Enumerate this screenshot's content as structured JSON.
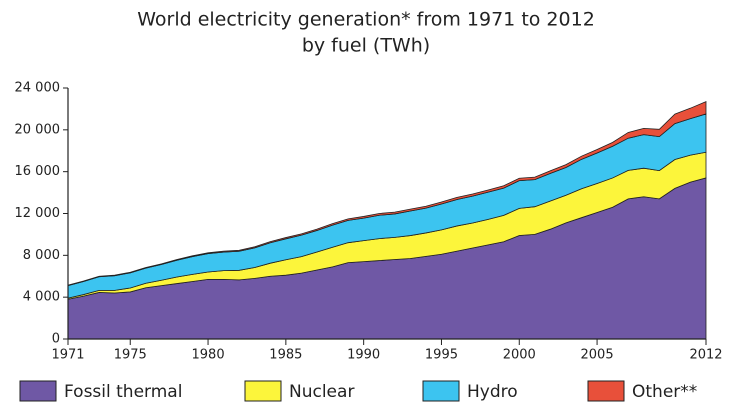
{
  "chart_data": {
    "type": "stacked-area",
    "title": [
      "World electricity generation* from 1971 to 2012",
      "by fuel (TWh)"
    ],
    "x": [
      1971,
      1972,
      1973,
      1974,
      1975,
      1976,
      1977,
      1978,
      1979,
      1980,
      1981,
      1982,
      1983,
      1984,
      1985,
      1986,
      1987,
      1988,
      1989,
      1990,
      1991,
      1992,
      1993,
      1994,
      1995,
      1996,
      1997,
      1998,
      1999,
      2000,
      2001,
      2002,
      2003,
      2004,
      2005,
      2006,
      2007,
      2008,
      2009,
      2010,
      2011,
      2012
    ],
    "series": [
      {
        "name": "Fossil thermal",
        "color": "#6f58a5",
        "values": [
          3800,
          4100,
          4450,
          4400,
          4500,
          4900,
          5100,
          5300,
          5500,
          5700,
          5700,
          5650,
          5800,
          6000,
          6100,
          6300,
          6600,
          6900,
          7300,
          7400,
          7500,
          7600,
          7700,
          7900,
          8100,
          8400,
          8700,
          9000,
          9300,
          9900,
          10000,
          10500,
          11100,
          11600,
          12100,
          12600,
          13400,
          13600,
          13400,
          14400,
          15000,
          15400
        ]
      },
      {
        "name": "Nuclear",
        "color": "#fcf53b",
        "values": [
          110,
          150,
          200,
          250,
          380,
          430,
          520,
          630,
          680,
          710,
          840,
          920,
          1040,
          1250,
          1480,
          1580,
          1720,
          1870,
          1910,
          2010,
          2100,
          2120,
          2190,
          2240,
          2330,
          2410,
          2390,
          2440,
          2520,
          2590,
          2650,
          2700,
          2640,
          2770,
          2770,
          2800,
          2720,
          2730,
          2700,
          2760,
          2580,
          2460
        ]
      },
      {
        "name": "Hydro",
        "color": "#3cc4f0",
        "values": [
          1200,
          1250,
          1300,
          1400,
          1450,
          1450,
          1500,
          1600,
          1700,
          1750,
          1770,
          1820,
          1880,
          1950,
          2000,
          2050,
          2060,
          2120,
          2130,
          2150,
          2230,
          2240,
          2350,
          2370,
          2480,
          2530,
          2570,
          2600,
          2610,
          2650,
          2590,
          2640,
          2660,
          2810,
          2920,
          3030,
          3080,
          3210,
          3250,
          3440,
          3490,
          3660
        ]
      },
      {
        "name": "Other**",
        "color": "#e8503a",
        "values": [
          40,
          45,
          50,
          50,
          55,
          60,
          65,
          70,
          75,
          80,
          85,
          90,
          100,
          110,
          120,
          125,
          130,
          140,
          150,
          160,
          170,
          175,
          180,
          185,
          190,
          200,
          205,
          210,
          220,
          230,
          240,
          250,
          270,
          300,
          330,
          370,
          550,
          600,
          700,
          900,
          1000,
          1180
        ]
      }
    ],
    "xlim": [
      1971,
      2012
    ],
    "xticks": [
      1971,
      1975,
      1980,
      1985,
      1990,
      1995,
      2000,
      2005,
      2012
    ],
    "ylim": [
      0,
      24000
    ],
    "yticks": [
      0,
      {
        "value": 4000,
        "label": "4 000"
      },
      {
        "value": 8000,
        "label": "8 000"
      },
      {
        "value": 12000,
        "label": "12 000"
      },
      {
        "value": 16000,
        "label": "16 000"
      },
      {
        "value": 20000,
        "label": "20 000"
      },
      {
        "value": 24000,
        "label": "24 000"
      }
    ]
  }
}
